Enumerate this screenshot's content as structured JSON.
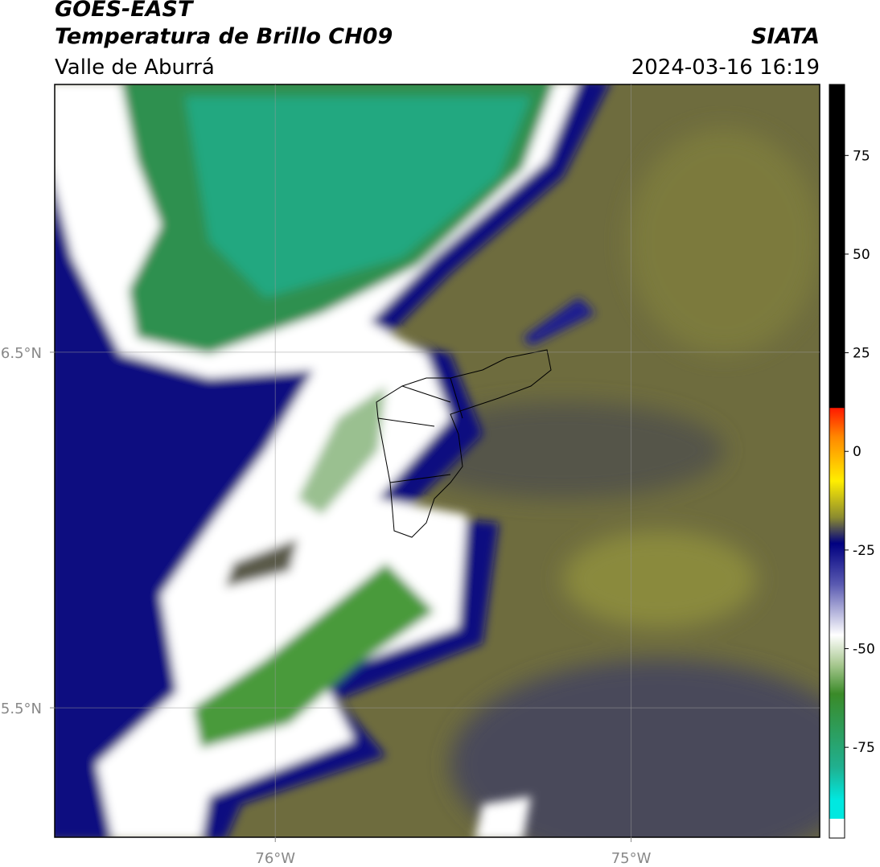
{
  "header": {
    "title": "GOES-EAST",
    "subtitle": "Temperatura de Brillo CH09",
    "region": "Valle de Aburrá",
    "source": "SIATA",
    "timestamp": "2024-03-16 16:19"
  },
  "map": {
    "xlim": [
      -76.62,
      -74.47
    ],
    "ylim": [
      5.136,
      7.253
    ],
    "xticks": [
      {
        "value": -76,
        "label": "76°W"
      },
      {
        "value": -75,
        "label": "75°W"
      }
    ],
    "yticks": [
      {
        "value": 5.5,
        "label": "5.5°N"
      },
      {
        "value": 6.5,
        "label": "6.5°N"
      }
    ]
  },
  "colorbar": {
    "lim": [
      -98,
      93
    ],
    "ticks": [
      75,
      50,
      25,
      0,
      -25,
      -50,
      -75
    ]
  }
}
